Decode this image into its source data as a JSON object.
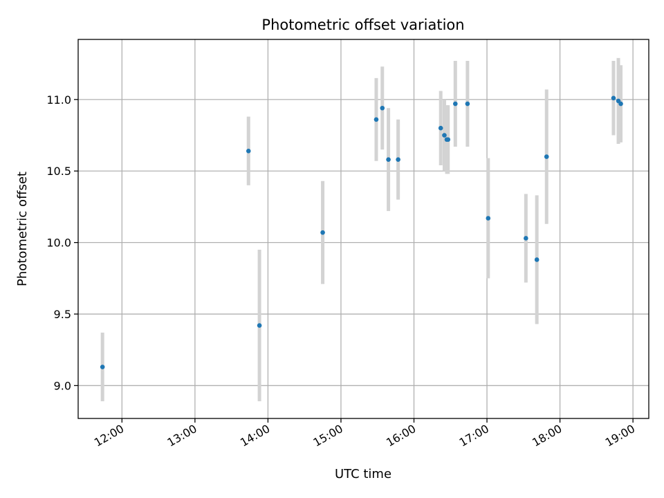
{
  "chart_data": {
    "type": "scatter",
    "title": "Photometric offset variation",
    "xlabel": "UTC time",
    "ylabel": "Photometric offset",
    "x_tick_labels": [
      "12:00",
      "13:00",
      "14:00",
      "15:00",
      "16:00",
      "17:00",
      "18:00",
      "19:00"
    ],
    "y_tick_labels": [
      "9.0",
      "9.5",
      "10.0",
      "10.5",
      "11.0"
    ],
    "y_ticks": [
      9.0,
      9.5,
      10.0,
      10.5,
      11.0
    ],
    "xlim": [
      "11:24",
      "19:13"
    ],
    "ylim": [
      8.77,
      11.42
    ],
    "grid": true,
    "marker_color": "#1f77b4",
    "errorbar_color": "#d3d3d3",
    "points": [
      {
        "x": "11:44",
        "y": 9.13,
        "err": 0.24
      },
      {
        "x": "13:44",
        "y": 10.64,
        "err": 0.24
      },
      {
        "x": "13:53",
        "y": 9.42,
        "err": 0.53
      },
      {
        "x": "14:45",
        "y": 10.07,
        "err": 0.36
      },
      {
        "x": "15:29",
        "y": 10.86,
        "err": 0.29
      },
      {
        "x": "15:34",
        "y": 10.94,
        "err": 0.29
      },
      {
        "x": "15:39",
        "y": 10.58,
        "err": 0.36
      },
      {
        "x": "15:47",
        "y": 10.58,
        "err": 0.28
      },
      {
        "x": "16:22",
        "y": 10.8,
        "err": 0.26
      },
      {
        "x": "16:25",
        "y": 10.75,
        "err": 0.25
      },
      {
        "x": "16:27",
        "y": 10.72,
        "err": 0.24
      },
      {
        "x": "16:28",
        "y": 10.72,
        "err": 0.24
      },
      {
        "x": "16:34",
        "y": 10.97,
        "err": 0.3
      },
      {
        "x": "16:44",
        "y": 10.97,
        "err": 0.3
      },
      {
        "x": "17:01",
        "y": 10.17,
        "err": 0.42
      },
      {
        "x": "17:32",
        "y": 10.03,
        "err": 0.31
      },
      {
        "x": "17:41",
        "y": 9.88,
        "err": 0.45
      },
      {
        "x": "17:49",
        "y": 10.6,
        "err": 0.47
      },
      {
        "x": "18:44",
        "y": 11.01,
        "err": 0.26
      },
      {
        "x": "18:48",
        "y": 10.99,
        "err": 0.3
      },
      {
        "x": "18:50",
        "y": 10.97,
        "err": 0.27
      }
    ]
  }
}
